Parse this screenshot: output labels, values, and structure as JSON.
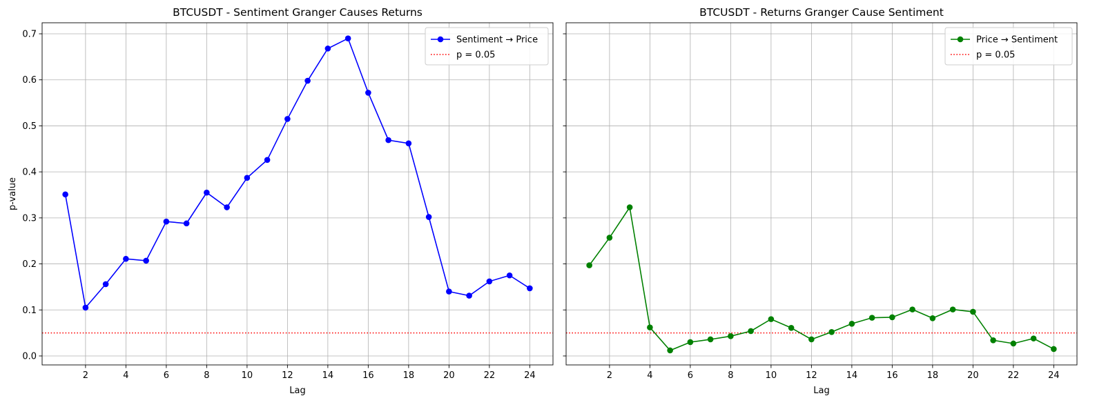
{
  "chart_data": [
    {
      "type": "line",
      "title": "BTCUSDT - Sentiment Granger Causes Returns",
      "xlabel": "Lag",
      "ylabel": "p-value",
      "xlim": [
        -0.15,
        25.15
      ],
      "ylim": [
        -0.0195,
        0.724
      ],
      "xticks": [
        2,
        4,
        6,
        8,
        10,
        12,
        14,
        16,
        18,
        20,
        22,
        24
      ],
      "yticks": [
        0.0,
        0.1,
        0.2,
        0.3,
        0.4,
        0.5,
        0.6,
        0.7
      ],
      "grid": true,
      "legend_position": "top-right",
      "x": [
        1,
        2,
        3,
        4,
        5,
        6,
        7,
        8,
        9,
        10,
        11,
        12,
        13,
        14,
        15,
        16,
        17,
        18,
        19,
        20,
        21,
        22,
        23,
        24
      ],
      "series": [
        {
          "name": "Sentiment → Price",
          "color": "#0000ff",
          "marker": "circle",
          "values": [
            0.351,
            0.105,
            0.156,
            0.211,
            0.207,
            0.292,
            0.288,
            0.355,
            0.323,
            0.387,
            0.426,
            0.515,
            0.598,
            0.668,
            0.69,
            0.572,
            0.469,
            0.462,
            0.302,
            0.14,
            0.131,
            0.162,
            0.175,
            0.147
          ]
        }
      ],
      "reference_lines": [
        {
          "name": "p = 0.05",
          "y": 0.05,
          "color": "#ff0000",
          "style": "dotted"
        }
      ]
    },
    {
      "type": "line",
      "title": "BTCUSDT - Returns Granger Cause Sentiment",
      "xlabel": "Lag",
      "ylabel": "",
      "xlim": [
        -0.15,
        25.15
      ],
      "ylim": [
        -0.0195,
        0.724
      ],
      "xticks": [
        2,
        4,
        6,
        8,
        10,
        12,
        14,
        16,
        18,
        20,
        22,
        24
      ],
      "yticks": [
        0.0,
        0.1,
        0.2,
        0.3,
        0.4,
        0.5,
        0.6,
        0.7
      ],
      "show_y_tick_labels": false,
      "grid": true,
      "legend_position": "top-right",
      "x": [
        1,
        2,
        3,
        4,
        5,
        6,
        7,
        8,
        9,
        10,
        11,
        12,
        13,
        14,
        15,
        16,
        17,
        18,
        19,
        20,
        21,
        22,
        23,
        24
      ],
      "series": [
        {
          "name": "Price → Sentiment",
          "color": "#008000",
          "marker": "circle",
          "values": [
            0.197,
            0.257,
            0.323,
            0.062,
            0.012,
            0.03,
            0.036,
            0.043,
            0.054,
            0.08,
            0.061,
            0.036,
            0.052,
            0.07,
            0.083,
            0.084,
            0.101,
            0.082,
            0.101,
            0.096,
            0.034,
            0.027,
            0.038,
            0.015
          ]
        }
      ],
      "reference_lines": [
        {
          "name": "p = 0.05",
          "y": 0.05,
          "color": "#ff0000",
          "style": "dotted"
        }
      ]
    }
  ]
}
